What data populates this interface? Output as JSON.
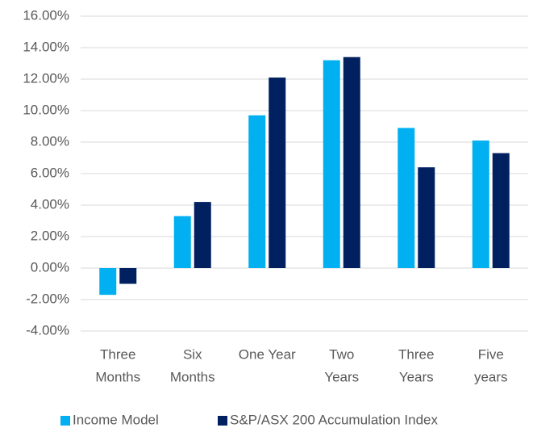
{
  "chart_data": {
    "type": "bar",
    "categories": [
      [
        "Three",
        "Months"
      ],
      [
        "Six",
        "Months"
      ],
      [
        "One Year"
      ],
      [
        "Two",
        "Years"
      ],
      [
        "Three",
        "Years"
      ],
      [
        "Five",
        "years"
      ]
    ],
    "series": [
      {
        "name": "Income Model",
        "color": "#00b0f0",
        "values": [
          -1.7,
          3.3,
          9.7,
          13.2,
          8.9,
          8.1
        ]
      },
      {
        "name": "S&P/ASX 200 Accumulation Index",
        "color": "#002060",
        "values": [
          -1.0,
          4.2,
          12.1,
          13.4,
          6.4,
          7.3
        ]
      }
    ],
    "ylim": [
      -4,
      16
    ],
    "yticks": [
      {
        "value": -4,
        "label": "-4.00%"
      },
      {
        "value": -2,
        "label": "-2.00%"
      },
      {
        "value": 0,
        "label": "0.00%"
      },
      {
        "value": 2,
        "label": "2.00%"
      },
      {
        "value": 4,
        "label": "4.00%"
      },
      {
        "value": 6,
        "label": "6.00%"
      },
      {
        "value": 8,
        "label": "8.00%"
      },
      {
        "value": 10,
        "label": "10.00%"
      },
      {
        "value": 12,
        "label": "12.00%"
      },
      {
        "value": 14,
        "label": "14.00%"
      },
      {
        "value": 16,
        "label": "16.00%"
      }
    ],
    "grid": true,
    "legend": "bottom"
  }
}
